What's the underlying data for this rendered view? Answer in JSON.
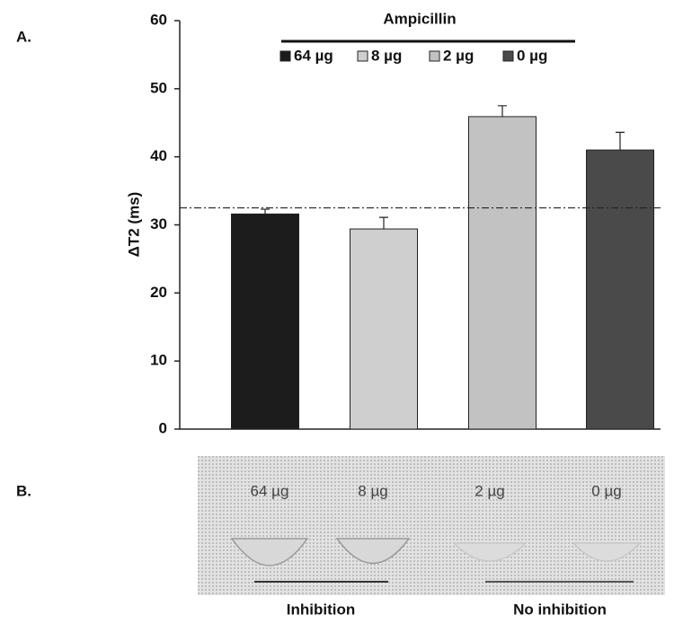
{
  "chart_data": {
    "type": "bar",
    "panel_label": "A.",
    "ylabel": "ΔT2 (ms)",
    "legend_title": "Ampicillin",
    "categories": [
      "64 µg",
      "8 µg",
      "2 µg",
      "0 µg"
    ],
    "values": [
      31.6,
      29.4,
      45.9,
      41.0
    ],
    "errors": [
      0.7,
      1.7,
      1.6,
      2.6
    ],
    "colors": [
      "#1c1c1c",
      "#cfcfcf",
      "#c2c2c2",
      "#4a4a4a"
    ],
    "reference_line": 32.5,
    "ylim": [
      0,
      60
    ],
    "yticks": [
      0,
      10,
      20,
      30,
      40,
      50,
      60
    ]
  },
  "panel_b": {
    "panel_label": "B.",
    "tube_labels": [
      "64 µg",
      "8 µg",
      "2 µg",
      "0 µg"
    ],
    "groups": [
      "Inhibition",
      "No inhibition"
    ]
  }
}
